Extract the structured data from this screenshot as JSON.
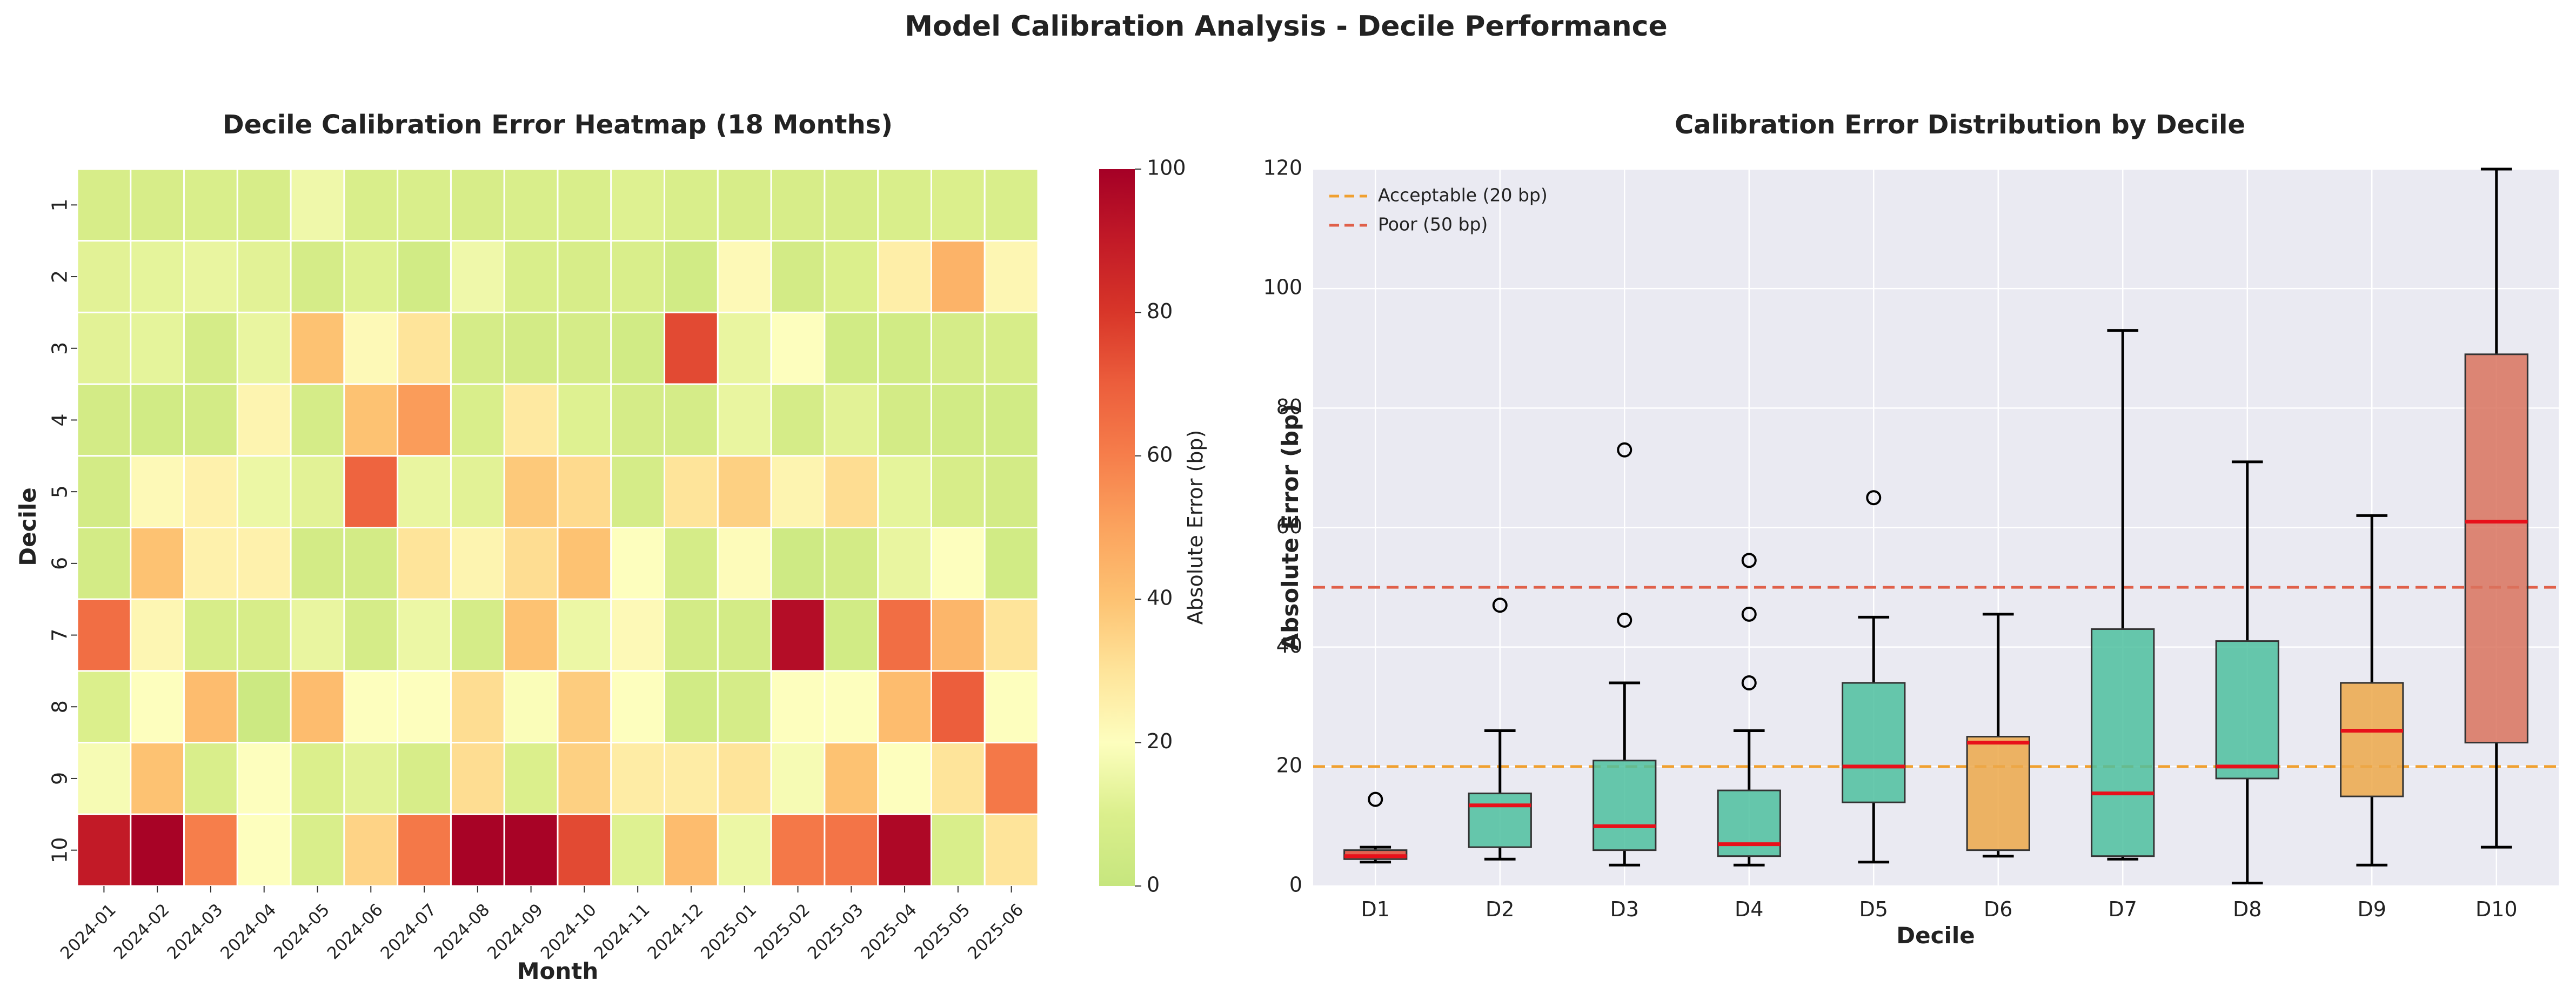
{
  "suptitle": "Model Calibration Analysis - Decile Performance",
  "chart_data": [
    {
      "type": "heatmap",
      "title": "Decile Calibration Error Heatmap (18 Months)",
      "xlabel": "Month",
      "ylabel": "Decile",
      "x_categories": [
        "2024-01",
        "2024-02",
        "2024-03",
        "2024-04",
        "2024-05",
        "2024-06",
        "2024-07",
        "2024-08",
        "2024-09",
        "2024-10",
        "2024-11",
        "2024-12",
        "2025-01",
        "2025-02",
        "2025-03",
        "2025-04",
        "2025-05",
        "2025-06"
      ],
      "y_categories": [
        "1",
        "2",
        "3",
        "4",
        "5",
        "6",
        "7",
        "8",
        "9",
        "10"
      ],
      "values": [
        [
          8,
          8,
          9,
          8,
          16,
          9,
          9,
          8,
          9,
          9,
          11,
          9,
          8,
          8,
          8,
          9,
          10,
          9
        ],
        [
          12,
          13,
          14,
          12,
          7,
          11,
          5,
          16,
          9,
          8,
          9,
          5,
          22,
          6,
          10,
          26,
          45,
          23
        ],
        [
          12,
          13,
          7,
          14,
          40,
          22,
          30,
          7,
          6,
          7,
          5,
          75,
          14,
          20,
          5,
          5,
          7,
          8
        ],
        [
          6,
          5,
          6,
          24,
          7,
          40,
          52,
          9,
          28,
          11,
          7,
          7,
          14,
          7,
          12,
          6,
          5,
          5
        ],
        [
          6,
          22,
          25,
          15,
          12,
          68,
          14,
          12,
          38,
          33,
          7,
          30,
          36,
          24,
          32,
          13,
          8,
          6
        ],
        [
          6,
          40,
          25,
          25,
          6,
          6,
          30,
          24,
          32,
          40,
          20,
          7,
          21,
          4,
          6,
          14,
          20,
          5
        ],
        [
          65,
          23,
          8,
          8,
          14,
          7,
          15,
          7,
          40,
          15,
          22,
          6,
          6,
          95,
          5,
          65,
          44,
          30
        ],
        [
          10,
          20,
          42,
          3,
          42,
          20,
          20,
          32,
          19,
          37,
          20,
          5,
          7,
          20,
          20,
          42,
          70,
          20
        ],
        [
          18,
          40,
          9,
          20,
          10,
          12,
          8,
          32,
          10,
          36,
          27,
          27,
          30,
          18,
          40,
          20,
          30,
          62
        ],
        [
          90,
          99,
          60,
          20,
          9,
          35,
          62,
          99,
          99,
          75,
          11,
          42,
          15,
          62,
          63,
          97,
          9,
          30
        ]
      ],
      "colorbar": {
        "label": "Absolute Error (bp)",
        "ticks": [
          0,
          20,
          40,
          60,
          80,
          100
        ],
        "range": [
          0,
          100
        ]
      }
    },
    {
      "type": "boxplot",
      "title": "Calibration Error Distribution by Decile",
      "xlabel": "Decile",
      "ylabel": "Absolute Error (bp)",
      "ylim": [
        0,
        120
      ],
      "yticks": [
        0,
        20,
        40,
        60,
        80,
        100,
        120
      ],
      "grid": true,
      "legend_position": "top-left",
      "reference_lines": [
        {
          "label": "Acceptable (20 bp)",
          "value": 20,
          "color": "#f0a030"
        },
        {
          "label": "Poor (50 bp)",
          "value": 50,
          "color": "#e0604a"
        }
      ],
      "boxes": [
        {
          "label": "D1",
          "whisker_low": 4,
          "q1": 4.5,
          "median": 5,
          "q3": 6,
          "whisker_high": 6.5,
          "outliers": [
            14.5
          ],
          "color": "#e04a35"
        },
        {
          "label": "D2",
          "whisker_low": 4.5,
          "q1": 6.5,
          "median": 13.5,
          "q3": 15.5,
          "whisker_high": 26,
          "outliers": [
            47
          ],
          "color": "#4dbf9f"
        },
        {
          "label": "D3",
          "whisker_low": 3.5,
          "q1": 6,
          "median": 10,
          "q3": 21,
          "whisker_high": 34,
          "outliers": [
            44.5,
            73
          ],
          "color": "#4dbf9f"
        },
        {
          "label": "D4",
          "whisker_low": 3.5,
          "q1": 5,
          "median": 7,
          "q3": 16,
          "whisker_high": 26,
          "outliers": [
            34,
            45.5,
            54.5
          ],
          "color": "#4dbf9f"
        },
        {
          "label": "D5",
          "whisker_low": 4,
          "q1": 14,
          "median": 20,
          "q3": 34,
          "whisker_high": 45,
          "outliers": [
            65
          ],
          "color": "#4dbf9f"
        },
        {
          "label": "D6",
          "whisker_low": 5,
          "q1": 6,
          "median": 24,
          "q3": 25,
          "whisker_high": 45.5,
          "outliers": [],
          "color": "#eca84a"
        },
        {
          "label": "D7",
          "whisker_low": 4.5,
          "q1": 5,
          "median": 15.5,
          "q3": 43,
          "whisker_high": 93,
          "outliers": [],
          "color": "#4dbf9f"
        },
        {
          "label": "D8",
          "whisker_low": 0.5,
          "q1": 18,
          "median": 20,
          "q3": 41,
          "whisker_high": 71,
          "outliers": [],
          "color": "#4dbf9f"
        },
        {
          "label": "D9",
          "whisker_low": 3.5,
          "q1": 15,
          "median": 26,
          "q3": 34,
          "whisker_high": 62,
          "outliers": [],
          "color": "#eca84a"
        },
        {
          "label": "D10",
          "whisker_low": 6.5,
          "q1": 24,
          "median": 61,
          "q3": 89,
          "whisker_high": 120,
          "outliers": [],
          "color": "#d9735e"
        }
      ]
    }
  ]
}
